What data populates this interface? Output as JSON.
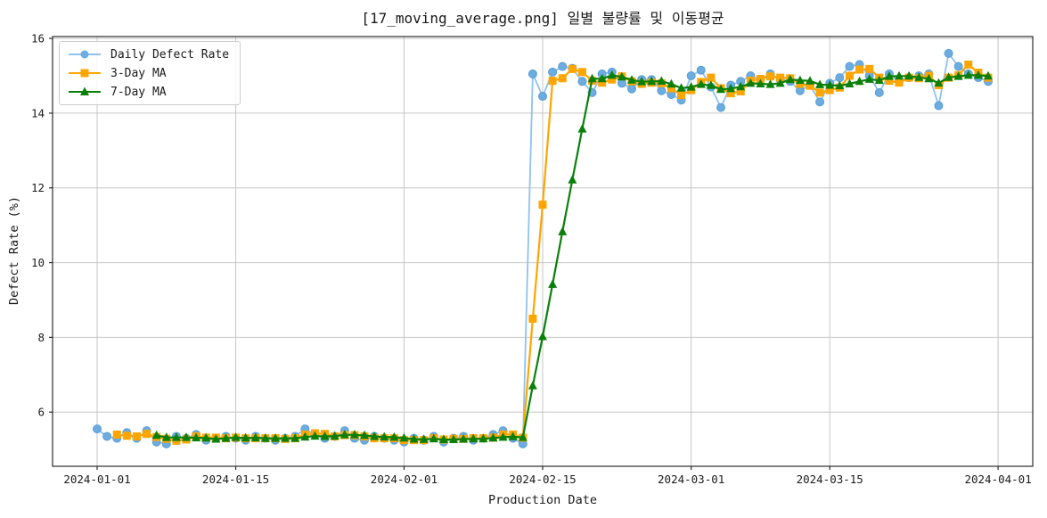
{
  "figure": {
    "background": "#ffffff",
    "grid_color": "#c6c6c6",
    "spine_color": "#2b2b2b",
    "text_color": "#1a1a1a"
  },
  "chart_data": {
    "type": "line",
    "title": "[17_moving_average.png] 일별 불량률 및 이동평균",
    "xlabel": "Production Date",
    "ylabel": "Defect Rate (%)",
    "grid": true,
    "legend_position": "upper-left",
    "x_unit": "days since 2024-01-01",
    "x_start_date": "2024-01-01",
    "x_end_date": "2024-03-31",
    "xlim_days": [
      -4.5,
      94.5
    ],
    "ylim": [
      4.55,
      16.05
    ],
    "x_ticks": [
      {
        "label": "2024-01-01",
        "day": 0
      },
      {
        "label": "2024-01-15",
        "day": 14
      },
      {
        "label": "2024-02-01",
        "day": 31
      },
      {
        "label": "2024-02-15",
        "day": 45
      },
      {
        "label": "2024-03-01",
        "day": 60
      },
      {
        "label": "2024-03-15",
        "day": 74
      },
      {
        "label": "2024-04-01",
        "day": 91
      }
    ],
    "y_ticks": [
      6,
      8,
      10,
      12,
      14,
      16
    ],
    "series": [
      {
        "name": "Daily Defect Rate",
        "type": "raw",
        "marker": "circle",
        "line_color": "#8fc2ee",
        "marker_color": "#6cacdf",
        "marker_edge_color": "#5b9fd6",
        "line_width": 1.8,
        "values": [
          5.55,
          5.35,
          5.3,
          5.45,
          5.3,
          5.5,
          5.2,
          5.15,
          5.35,
          5.3,
          5.4,
          5.25,
          5.3,
          5.35,
          5.3,
          5.25,
          5.35,
          5.3,
          5.25,
          5.3,
          5.35,
          5.55,
          5.4,
          5.3,
          5.35,
          5.5,
          5.3,
          5.25,
          5.35,
          5.3,
          5.25,
          5.2,
          5.3,
          5.25,
          5.35,
          5.2,
          5.3,
          5.35,
          5.25,
          5.3,
          5.4,
          5.5,
          5.3,
          5.15,
          15.05,
          14.45,
          15.1,
          15.25,
          15.2,
          14.85,
          14.55,
          15.05,
          15.1,
          14.8,
          14.65,
          14.9,
          14.9,
          14.6,
          14.5,
          14.35,
          15.0,
          15.15,
          14.7,
          14.15,
          14.75,
          14.85,
          15.0,
          14.9,
          15.05,
          14.9,
          14.85,
          14.6,
          14.75,
          14.3,
          14.8,
          14.95,
          15.25,
          15.3,
          15.0,
          14.55,
          15.05,
          14.85,
          14.95,
          15.0,
          15.05,
          14.2,
          15.6,
          15.25,
          15.05,
          14.95,
          14.85
        ]
      },
      {
        "name": "3-Day MA",
        "type": "moving_average",
        "window": 3,
        "marker": "square",
        "line_color": "#ffa500",
        "marker_color": "#ffa500",
        "line_width": 2.2
      },
      {
        "name": "7-Day MA",
        "type": "moving_average",
        "window": 7,
        "marker": "triangle",
        "line_color": "#0a800a",
        "marker_color": "#0a800a",
        "line_width": 2.2
      }
    ]
  }
}
